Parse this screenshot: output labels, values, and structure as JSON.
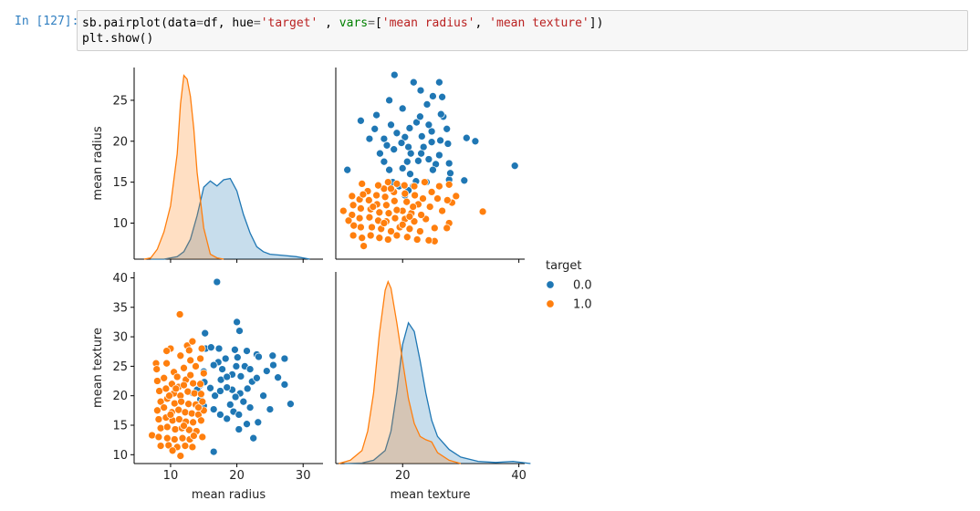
{
  "cell": {
    "prompt": "In [127]:",
    "code_line1_parts": [
      {
        "t": "sb.pairplot(data",
        "c": ""
      },
      {
        "t": "=",
        "c": "op"
      },
      {
        "t": "df, hue",
        "c": ""
      },
      {
        "t": "=",
        "c": "op"
      },
      {
        "t": "'target'",
        "c": "str"
      },
      {
        "t": " , ",
        "c": ""
      },
      {
        "t": "vars",
        "c": "kw"
      },
      {
        "t": "=",
        "c": "op"
      },
      {
        "t": "[",
        "c": ""
      },
      {
        "t": "'mean radius'",
        "c": "str"
      },
      {
        "t": ", ",
        "c": ""
      },
      {
        "t": "'mean texture'",
        "c": "str"
      },
      {
        "t": "])",
        "c": ""
      }
    ],
    "code_line2": "plt.show()"
  },
  "chart_data": {
    "type": "scatter",
    "kind": "pairplot",
    "variables": [
      "mean radius",
      "mean texture"
    ],
    "hue": "target",
    "legend": {
      "title": "target",
      "entries": [
        "0.0",
        "1.0"
      ],
      "placement": "right"
    },
    "colors": {
      "0.0": "#1f77b4",
      "1.0": "#ff7f0e"
    },
    "axes": {
      "mean radius": {
        "ticks": [
          10,
          20,
          30
        ],
        "diag_ticks": [
          10,
          15,
          20,
          25
        ],
        "range": [
          4.5,
          33
        ]
      },
      "mean texture": {
        "ticks": [
          10,
          15,
          20,
          25,
          30,
          35,
          40
        ],
        "x_ticks": [
          20,
          40
        ],
        "range": [
          8.5,
          41
        ]
      }
    },
    "axis_labels": {
      "x": [
        "mean radius",
        "mean texture"
      ],
      "y": [
        "mean radius",
        "mean texture"
      ]
    },
    "kde": {
      "mean radius": {
        "0.0": [
          [
            7,
            0
          ],
          [
            9,
            0
          ],
          [
            11,
            0.2
          ],
          [
            12,
            0.6
          ],
          [
            13,
            1.6
          ],
          [
            14,
            3.5
          ],
          [
            15,
            5.8
          ],
          [
            16,
            6.3
          ],
          [
            17,
            5.9
          ],
          [
            18,
            6.4
          ],
          [
            19,
            6.5
          ],
          [
            20,
            5.5
          ],
          [
            21,
            3.6
          ],
          [
            22,
            2.1
          ],
          [
            23,
            1.0
          ],
          [
            24,
            0.6
          ],
          [
            25,
            0.4
          ],
          [
            27,
            0.3
          ],
          [
            29,
            0.2
          ],
          [
            31,
            0
          ]
        ],
        "1.0": [
          [
            6,
            0
          ],
          [
            7,
            0.1
          ],
          [
            8,
            0.8
          ],
          [
            9,
            2.2
          ],
          [
            10,
            4.3
          ],
          [
            11,
            8.5
          ],
          [
            11.5,
            12.5
          ],
          [
            12,
            14.8
          ],
          [
            12.5,
            14.5
          ],
          [
            13,
            13.1
          ],
          [
            13.5,
            10.5
          ],
          [
            14,
            7.0
          ],
          [
            15,
            2.5
          ],
          [
            16,
            0.4
          ],
          [
            17,
            0.1
          ],
          [
            18,
            0
          ]
        ]
      },
      "mean texture": {
        "0.0": [
          [
            10,
            0
          ],
          [
            13,
            0.05
          ],
          [
            15,
            0.3
          ],
          [
            17,
            1.2
          ],
          [
            18,
            3.0
          ],
          [
            19,
            6.6
          ],
          [
            20,
            11.0
          ],
          [
            21,
            13.0
          ],
          [
            22,
            12.2
          ],
          [
            23,
            9.5
          ],
          [
            24,
            6.5
          ],
          [
            25,
            4.0
          ],
          [
            26,
            2.5
          ],
          [
            28,
            1.3
          ],
          [
            30,
            0.6
          ],
          [
            33,
            0.2
          ],
          [
            36,
            0.1
          ],
          [
            39,
            0.2
          ],
          [
            42,
            0
          ]
        ],
        "1.0": [
          [
            9,
            0
          ],
          [
            11,
            0.3
          ],
          [
            13,
            1.2
          ],
          [
            14,
            3.0
          ],
          [
            15,
            6.5
          ],
          [
            16,
            12.0
          ],
          [
            17,
            16.0
          ],
          [
            17.5,
            16.8
          ],
          [
            18,
            16.2
          ],
          [
            19,
            13.0
          ],
          [
            20,
            9.5
          ],
          [
            21,
            6.0
          ],
          [
            22,
            3.7
          ],
          [
            23,
            2.5
          ],
          [
            24,
            2.2
          ],
          [
            25,
            2.0
          ],
          [
            26,
            1.0
          ],
          [
            28,
            0.3
          ],
          [
            30,
            0
          ]
        ]
      }
    },
    "points": {
      "0.0": [
        [
          15.3,
          28.0
        ],
        [
          17.0,
          39.3
        ],
        [
          16.1,
          28.2
        ],
        [
          17.3,
          28.0
        ],
        [
          20.0,
          32.5
        ],
        [
          20.4,
          31.0
        ],
        [
          19.7,
          27.8
        ],
        [
          21.5,
          27.6
        ],
        [
          20.1,
          26.5
        ],
        [
          21.2,
          25.0
        ],
        [
          23.0,
          27.0
        ],
        [
          23.3,
          26.6
        ],
        [
          25.4,
          26.8
        ],
        [
          27.2,
          26.3
        ],
        [
          25.5,
          25.2
        ],
        [
          24.5,
          24.2
        ],
        [
          26.2,
          23.1
        ],
        [
          27.2,
          21.9
        ],
        [
          28.1,
          18.6
        ],
        [
          25.0,
          17.7
        ],
        [
          23.2,
          15.5
        ],
        [
          21.5,
          15.2
        ],
        [
          20.3,
          14.3
        ],
        [
          22.5,
          12.8
        ],
        [
          24.0,
          20.0
        ],
        [
          22.3,
          22.4
        ],
        [
          19.9,
          25.0
        ],
        [
          19.3,
          23.6
        ],
        [
          17.6,
          22.7
        ],
        [
          17.2,
          25.7
        ],
        [
          17.8,
          24.5
        ],
        [
          18.5,
          23.2
        ],
        [
          16.5,
          25.2
        ],
        [
          15.2,
          30.6
        ],
        [
          16.7,
          20.0
        ],
        [
          15.1,
          22.3
        ],
        [
          15.0,
          24.1
        ],
        [
          14.5,
          21.8
        ],
        [
          14.0,
          21.0
        ],
        [
          13.4,
          20.4
        ],
        [
          14.5,
          19.4
        ],
        [
          15.0,
          18.3
        ],
        [
          16.5,
          17.7
        ],
        [
          17.5,
          16.8
        ],
        [
          18.5,
          16.1
        ],
        [
          19.5,
          17.3
        ],
        [
          20.3,
          16.8
        ],
        [
          21.0,
          19.0
        ],
        [
          20.5,
          20.4
        ],
        [
          19.3,
          21.0
        ],
        [
          18.5,
          21.4
        ],
        [
          17.5,
          20.8
        ],
        [
          16.0,
          21.3
        ],
        [
          19.0,
          18.5
        ],
        [
          16.5,
          10.5
        ],
        [
          22.0,
          18.0
        ],
        [
          21.6,
          21.2
        ],
        [
          23.0,
          23.0
        ],
        [
          22.0,
          24.5
        ],
        [
          20.6,
          23.3
        ],
        [
          18.3,
          26.3
        ],
        [
          19.8,
          19.8
        ]
      ],
      "1.0": [
        [
          11.4,
          33.8
        ],
        [
          12.5,
          28.5
        ],
        [
          14.7,
          28.0
        ],
        [
          13.3,
          29.2
        ],
        [
          12.8,
          27.7
        ],
        [
          10.0,
          28.0
        ],
        [
          9.4,
          27.6
        ],
        [
          11.5,
          26.8
        ],
        [
          13.0,
          26.0
        ],
        [
          14.5,
          26.3
        ],
        [
          7.8,
          25.5
        ],
        [
          7.9,
          24.5
        ],
        [
          9.4,
          25.5
        ],
        [
          10.5,
          24.0
        ],
        [
          12.0,
          24.7
        ],
        [
          13.8,
          25.0
        ],
        [
          15.0,
          23.8
        ],
        [
          8.0,
          22.5
        ],
        [
          9.0,
          23.0
        ],
        [
          10.2,
          22.0
        ],
        [
          11.2,
          21.5
        ],
        [
          12.3,
          22.7
        ],
        [
          13.4,
          22.1
        ],
        [
          14.5,
          22.0
        ],
        [
          8.3,
          20.8
        ],
        [
          9.3,
          21.2
        ],
        [
          10.5,
          20.4
        ],
        [
          11.5,
          20.0
        ],
        [
          12.6,
          20.7
        ],
        [
          13.6,
          20.4
        ],
        [
          14.6,
          20.3
        ],
        [
          8.5,
          19.0
        ],
        [
          9.5,
          19.5
        ],
        [
          10.6,
          18.7
        ],
        [
          11.6,
          19.0
        ],
        [
          12.7,
          18.6
        ],
        [
          13.8,
          18.5
        ],
        [
          14.8,
          19.0
        ],
        [
          8.0,
          17.5
        ],
        [
          9.0,
          18.0
        ],
        [
          10.2,
          17.2
        ],
        [
          11.2,
          17.6
        ],
        [
          12.2,
          17.2
        ],
        [
          13.2,
          17.0
        ],
        [
          14.2,
          16.8
        ],
        [
          15.0,
          17.5
        ],
        [
          8.2,
          16.0
        ],
        [
          9.3,
          16.3
        ],
        [
          10.3,
          15.8
        ],
        [
          11.3,
          16.0
        ],
        [
          12.3,
          15.6
        ],
        [
          13.4,
          15.5
        ],
        [
          14.6,
          15.8
        ],
        [
          8.5,
          14.5
        ],
        [
          9.5,
          14.7
        ],
        [
          10.7,
          14.3
        ],
        [
          11.7,
          14.5
        ],
        [
          12.8,
          14.2
        ],
        [
          13.9,
          14.0
        ],
        [
          7.2,
          13.3
        ],
        [
          8.2,
          13.0
        ],
        [
          9.5,
          12.8
        ],
        [
          10.6,
          12.6
        ],
        [
          11.8,
          12.8
        ],
        [
          12.9,
          12.6
        ],
        [
          8.5,
          11.5
        ],
        [
          9.7,
          11.6
        ],
        [
          11.0,
          11.3
        ],
        [
          12.2,
          11.5
        ],
        [
          10.3,
          10.7
        ],
        [
          11.5,
          9.8
        ],
        [
          13.3,
          11.3
        ],
        [
          13.5,
          13.2
        ],
        [
          14.8,
          13.0
        ],
        [
          10.8,
          21.2
        ],
        [
          9.8,
          20.0
        ],
        [
          12.0,
          21.8
        ],
        [
          11.0,
          23.2
        ],
        [
          13.0,
          23.5
        ],
        [
          10.0,
          16.8
        ],
        [
          12.0,
          14.9
        ],
        [
          14.2,
          18.0
        ]
      ]
    }
  }
}
